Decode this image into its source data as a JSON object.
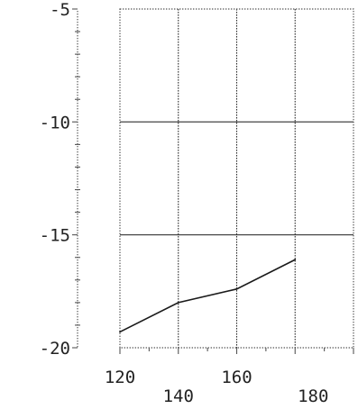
{
  "chart_data": {
    "type": "line",
    "title": "",
    "xlabel": "",
    "ylabel": "",
    "xlim": [
      120,
      200
    ],
    "ylim": [
      -20,
      -5
    ],
    "x_ticks": [
      120,
      140,
      160,
      180
    ],
    "x_tick_labels": [
      "120",
      "140",
      "160",
      "180"
    ],
    "y_ticks": [
      -5,
      -10,
      -15,
      -20
    ],
    "y_tick_labels": [
      "-5",
      "-10",
      "-15",
      "-20"
    ],
    "grid": true,
    "series": [
      {
        "x": [
          120,
          140,
          160,
          180
        ],
        "y": [
          -19.3,
          -18.0,
          -17.4,
          -16.1
        ]
      }
    ]
  },
  "colors": {
    "line": "#1a1a1a",
    "grid": "#333333",
    "frame": "#555555"
  }
}
